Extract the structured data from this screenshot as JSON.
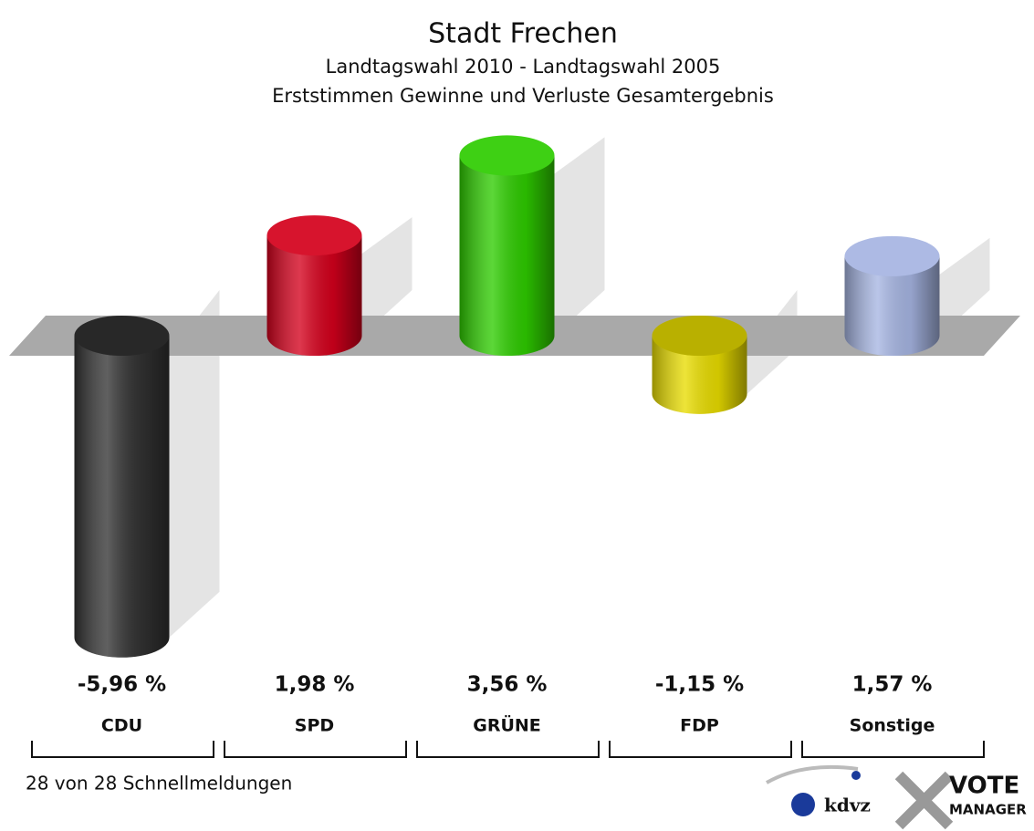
{
  "chart_data": {
    "type": "bar",
    "title": "Stadt Frechen",
    "subtitle": [
      "Landtagswahl 2010 - Landtagswahl 2005",
      "Erststimmen Gewinne und Verluste Gesamtergebnis"
    ],
    "categories": [
      "CDU",
      "SPD",
      "GRÜNE",
      "FDP",
      "Sonstige"
    ],
    "values": [
      -5.96,
      1.98,
      3.56,
      -1.15,
      1.57
    ],
    "value_labels": [
      "-5,96 %",
      "1,98 %",
      "3,56 %",
      "-1,15 %",
      "1,57 %"
    ],
    "colors": [
      "#333333",
      "#d4001c",
      "#2ecc00",
      "#e8dc00",
      "#a6b5e2"
    ],
    "note": "28 von 28 Schnellmeldungen",
    "logo_texts": [
      "kdvz",
      "VOTE",
      "MANAGER"
    ]
  }
}
